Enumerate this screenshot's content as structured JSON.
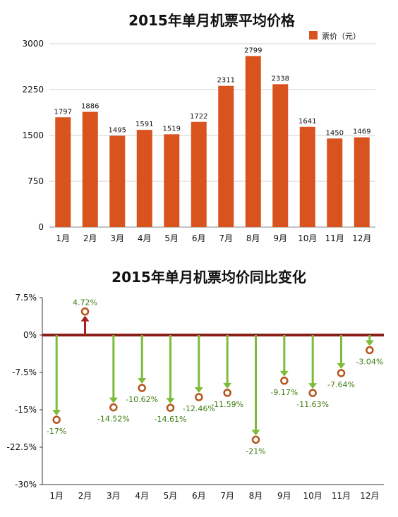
{
  "chart_data": [
    {
      "type": "bar",
      "title": "2015年单月机票平均价格",
      "categories": [
        "1月",
        "2月",
        "3月",
        "4月",
        "5月",
        "6月",
        "7月",
        "8月",
        "9月",
        "10月",
        "11月",
        "12月"
      ],
      "series": [
        {
          "name": "票价（元）",
          "values": [
            1797,
            1886,
            1495,
            1591,
            1519,
            1722,
            2311,
            2799,
            2338,
            1641,
            1450,
            1469
          ]
        }
      ],
      "y_ticks": [
        "0",
        "750",
        "1500",
        "2250",
        "3000"
      ],
      "ylim": [
        0,
        3000
      ],
      "grid": true,
      "legend": "top-right",
      "colors": {
        "bar": "#d9531e"
      }
    },
    {
      "type": "bar",
      "title": "2015年单月机票均价同比变化",
      "categories": [
        "1月",
        "2月",
        "3月",
        "4月",
        "5月",
        "6月",
        "7月",
        "8月",
        "9月",
        "10月",
        "11月",
        "12月"
      ],
      "series": [
        {
          "values": [
            -17,
            4.72,
            -14.52,
            -10.62,
            -14.61,
            -12.46,
            -11.59,
            -21,
            -9.17,
            -11.63,
            -7.64,
            -3.04
          ]
        }
      ],
      "data_labels": [
        "-17%",
        "4.72%",
        "-14.52%",
        "-10.62%",
        "-14.61%",
        "-12.46%",
        "-11.59%",
        "-21%",
        "-9.17%",
        "-11.63%",
        "-7.64%",
        "-3.04%"
      ],
      "y_ticks": [
        "7.5%",
        "0%",
        "-7.5%",
        "-15%",
        "-22.5%",
        "-30%"
      ],
      "ylim": [
        -30,
        7.5
      ],
      "grid": false,
      "colors": {
        "negative": "#7dbb3a",
        "positive": "#a5231c",
        "marker": "#b5531b",
        "baseline": "#8b1e1a"
      }
    }
  ]
}
